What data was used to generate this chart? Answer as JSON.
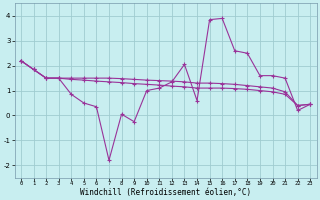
{
  "xlabel": "Windchill (Refroidissement éolien,°C)",
  "background_color": "#c8eef0",
  "grid_color": "#a0ccd0",
  "line_color": "#993399",
  "xlim": [
    -0.5,
    23.5
  ],
  "ylim": [
    -2.5,
    4.5
  ],
  "xticks": [
    0,
    1,
    2,
    3,
    4,
    5,
    6,
    7,
    8,
    9,
    10,
    11,
    12,
    13,
    14,
    15,
    16,
    17,
    18,
    19,
    20,
    21,
    22,
    23
  ],
  "yticks": [
    -2,
    -1,
    0,
    1,
    2,
    3,
    4
  ],
  "line1_x": [
    0,
    1,
    2,
    3,
    4,
    5,
    6,
    7,
    8,
    9,
    10,
    11,
    12,
    13,
    14,
    15,
    16,
    17,
    18,
    19,
    20,
    21,
    22,
    23
  ],
  "line1_y": [
    2.2,
    1.85,
    1.5,
    1.5,
    0.85,
    0.5,
    0.35,
    -1.8,
    0.05,
    -0.25,
    1.0,
    1.1,
    1.35,
    2.05,
    0.6,
    3.85,
    3.9,
    2.6,
    2.5,
    1.6,
    1.6,
    1.5,
    0.2,
    0.45
  ],
  "line2_x": [
    0,
    1,
    2,
    3,
    4,
    5,
    6,
    7,
    8,
    9,
    10,
    11,
    12,
    13,
    14,
    15,
    16,
    17,
    18,
    19,
    20,
    21,
    22,
    23
  ],
  "line2_y": [
    2.2,
    1.85,
    1.5,
    1.5,
    1.45,
    1.42,
    1.38,
    1.35,
    1.32,
    1.28,
    1.25,
    1.22,
    1.18,
    1.15,
    1.1,
    1.1,
    1.1,
    1.08,
    1.05,
    1.0,
    0.95,
    0.85,
    0.4,
    0.45
  ],
  "line3_x": [
    0,
    1,
    2,
    3,
    4,
    5,
    6,
    7,
    8,
    9,
    10,
    11,
    12,
    13,
    14,
    15,
    16,
    17,
    18,
    19,
    20,
    21,
    22,
    23
  ],
  "line3_y": [
    2.2,
    1.85,
    1.5,
    1.5,
    1.5,
    1.5,
    1.5,
    1.5,
    1.48,
    1.45,
    1.42,
    1.4,
    1.38,
    1.35,
    1.3,
    1.3,
    1.28,
    1.25,
    1.2,
    1.15,
    1.1,
    0.95,
    0.4,
    0.45
  ]
}
